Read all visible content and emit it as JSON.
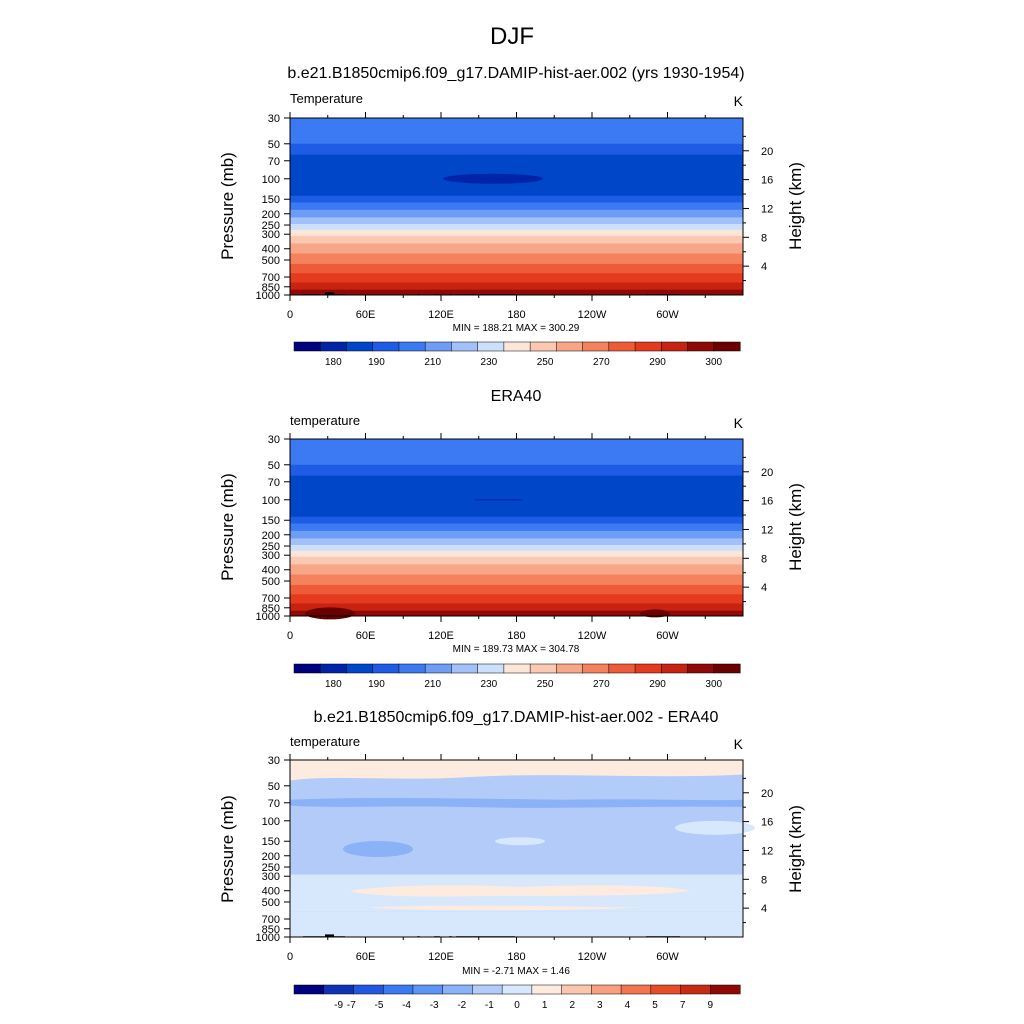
{
  "figure": {
    "title": "DJF"
  },
  "colors": {
    "temperature_palette": [
      "#00007f",
      "#0023a8",
      "#0046c8",
      "#1f5ce6",
      "#3b7af2",
      "#6f9cf5",
      "#a2c0f9",
      "#cce0fc",
      "#fce6d9",
      "#fbc8b1",
      "#f7a788",
      "#f4825e",
      "#ee5b38",
      "#e43b1e",
      "#c82311",
      "#8f0a06",
      "#6b0000"
    ],
    "diff_palette": [
      "#00007f",
      "#0f32b3",
      "#2457e0",
      "#3b7af2",
      "#5e94f3",
      "#8bb1f6",
      "#b2cbf8",
      "#d7e7fc",
      "#fdebe0",
      "#fbc6ae",
      "#f7a07f",
      "#f1764f",
      "#e44c2a",
      "#c62b15",
      "#8f0a06"
    ],
    "missing_land": "#000000"
  },
  "chart_data": [
    {
      "type": "heatmap",
      "title": "b.e21.B1850cmip6.f09_g17.DAMIP-hist-aer.002 (yrs 1930-1954)",
      "left_label": "Temperature",
      "right_label": "K",
      "ylabel": "Pressure (mb)",
      "ylabel_right": "Height (km)",
      "x_ticks": [
        "0",
        "60E",
        "120E",
        "180",
        "120W",
        "60W"
      ],
      "y_ticks": [
        "30",
        "50",
        "70",
        "100",
        "150",
        "200",
        "250",
        "300",
        "400",
        "500",
        "700",
        "850",
        "1000"
      ],
      "height_ticks": [
        "20",
        "16",
        "12",
        "8",
        "4"
      ],
      "stats": "MIN = 188.21  MAX = 300.29",
      "colorbar_labels": [
        "180",
        "190",
        "210",
        "230",
        "250",
        "270",
        "290",
        "300"
      ],
      "ylim": [
        30,
        1000
      ],
      "xlim": [
        0,
        360
      ]
    },
    {
      "type": "heatmap",
      "title": "ERA40",
      "left_label": "temperature",
      "right_label": "K",
      "ylabel": "Pressure (mb)",
      "ylabel_right": "Height (km)",
      "x_ticks": [
        "0",
        "60E",
        "120E",
        "180",
        "120W",
        "60W"
      ],
      "y_ticks": [
        "30",
        "50",
        "70",
        "100",
        "150",
        "200",
        "250",
        "300",
        "400",
        "500",
        "700",
        "850",
        "1000"
      ],
      "height_ticks": [
        "20",
        "16",
        "12",
        "8",
        "4"
      ],
      "stats": "MIN = 189.73  MAX = 304.78",
      "colorbar_labels": [
        "180",
        "190",
        "210",
        "230",
        "250",
        "270",
        "290",
        "300"
      ],
      "ylim": [
        30,
        1000
      ],
      "xlim": [
        0,
        360
      ]
    },
    {
      "type": "heatmap",
      "title": "b.e21.B1850cmip6.f09_g17.DAMIP-hist-aer.002 - ERA40",
      "left_label": "temperature",
      "right_label": "K",
      "ylabel": "Pressure (mb)",
      "ylabel_right": "Height (km)",
      "x_ticks": [
        "0",
        "60E",
        "120E",
        "180",
        "120W",
        "60W"
      ],
      "y_ticks": [
        "30",
        "50",
        "70",
        "100",
        "150",
        "200",
        "250",
        "300",
        "400",
        "500",
        "700",
        "850",
        "1000"
      ],
      "height_ticks": [
        "20",
        "16",
        "12",
        "8",
        "4"
      ],
      "stats": "MIN =  -2.71  MAX =   1.46",
      "colorbar_labels": [
        "-9",
        "-7",
        "-5",
        "-4",
        "-3",
        "-2",
        "-1",
        "0",
        "1",
        "2",
        "3",
        "4",
        "5",
        "7",
        "9"
      ],
      "ylim": [
        30,
        1000
      ],
      "xlim": [
        0,
        360
      ]
    }
  ]
}
